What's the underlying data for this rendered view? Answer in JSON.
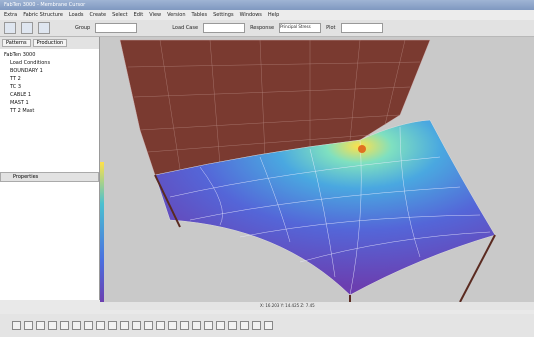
{
  "window": {
    "title": "FabTen 3000 - Membrane Cursor"
  },
  "menu": [
    "Extra",
    "Fabric Structure",
    "Loads",
    "Create",
    "Select",
    "Edit",
    "View",
    "Version",
    "Tables",
    "Settings",
    "Windows",
    "Help"
  ],
  "toolbar": {
    "group": "Group",
    "load_case": "Load Case",
    "response": "Response",
    "response_value": "Principal Stress",
    "plot": "Plot"
  },
  "panel": {
    "tabs": [
      "Patterns",
      "Production"
    ],
    "tree": [
      "FabTen 3000",
      "Load Conditions",
      "BOUNDARY 1",
      "TT 2",
      "TC 3",
      "CABLE 1",
      "MAST 1",
      "TT 2 Mast"
    ],
    "properties": "Properties"
  },
  "status": "X: 16.203 Y: 14.425 Z: 7.45"
}
